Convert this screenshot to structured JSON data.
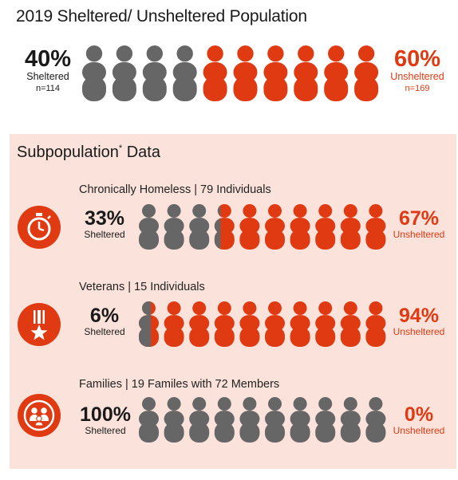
{
  "colors": {
    "sheltered": "#666666",
    "unsheltered": "#e03a12",
    "panel": "#fbe3dc",
    "text_dark": "#1a1a1a"
  },
  "header": {
    "title": "2019 Sheltered/ Unsheltered Population",
    "sheltered": {
      "pct": "40%",
      "label": "Sheltered",
      "n": "n=114"
    },
    "unsheltered": {
      "pct": "60%",
      "label": "Unsheltered",
      "n": "n=169"
    }
  },
  "subpopulation": {
    "title": "Subpopulation",
    "title_mark": "*",
    "title_rest": " Data",
    "rows": [
      {
        "title": "Chronically Homeless | 79 Individuals",
        "icon": "stopwatch-icon",
        "sheltered_pct": "33%",
        "sheltered_label": "Sheltered",
        "unsheltered_pct": "67%",
        "unsheltered_label": "Unsheltered"
      },
      {
        "title": "Veterans |  15 Individuals",
        "icon": "medal-icon",
        "sheltered_pct": "6%",
        "sheltered_label": "Sheltered",
        "unsheltered_pct": "94%",
        "unsheltered_label": "Unsheltered"
      },
      {
        "title": "Families | 19 Familes with 72 Members",
        "icon": "family-icon",
        "sheltered_pct": "100%",
        "sheltered_label": "Sheltered",
        "unsheltered_pct": "0%",
        "unsheltered_label": "Unsheltered"
      }
    ]
  },
  "chart_data": [
    {
      "type": "pictograph",
      "title": "2019 Sheltered/ Unsheltered Population",
      "icons_total": 10,
      "series": [
        {
          "name": "Sheltered",
          "percent": 40,
          "n": 114
        },
        {
          "name": "Unsheltered",
          "percent": 60,
          "n": 169
        }
      ]
    },
    {
      "type": "pictograph",
      "title": "Chronically Homeless | 79 Individuals",
      "icons_total": 10,
      "series": [
        {
          "name": "Sheltered",
          "percent": 33
        },
        {
          "name": "Unsheltered",
          "percent": 67
        }
      ]
    },
    {
      "type": "pictograph",
      "title": "Veterans |  15 Individuals",
      "icons_total": 10,
      "series": [
        {
          "name": "Sheltered",
          "percent": 6
        },
        {
          "name": "Unsheltered",
          "percent": 94
        }
      ]
    },
    {
      "type": "pictograph",
      "title": "Families | 19 Familes with 72 Members",
      "icons_total": 10,
      "series": [
        {
          "name": "Sheltered",
          "percent": 100
        },
        {
          "name": "Unsheltered",
          "percent": 0
        }
      ]
    }
  ]
}
